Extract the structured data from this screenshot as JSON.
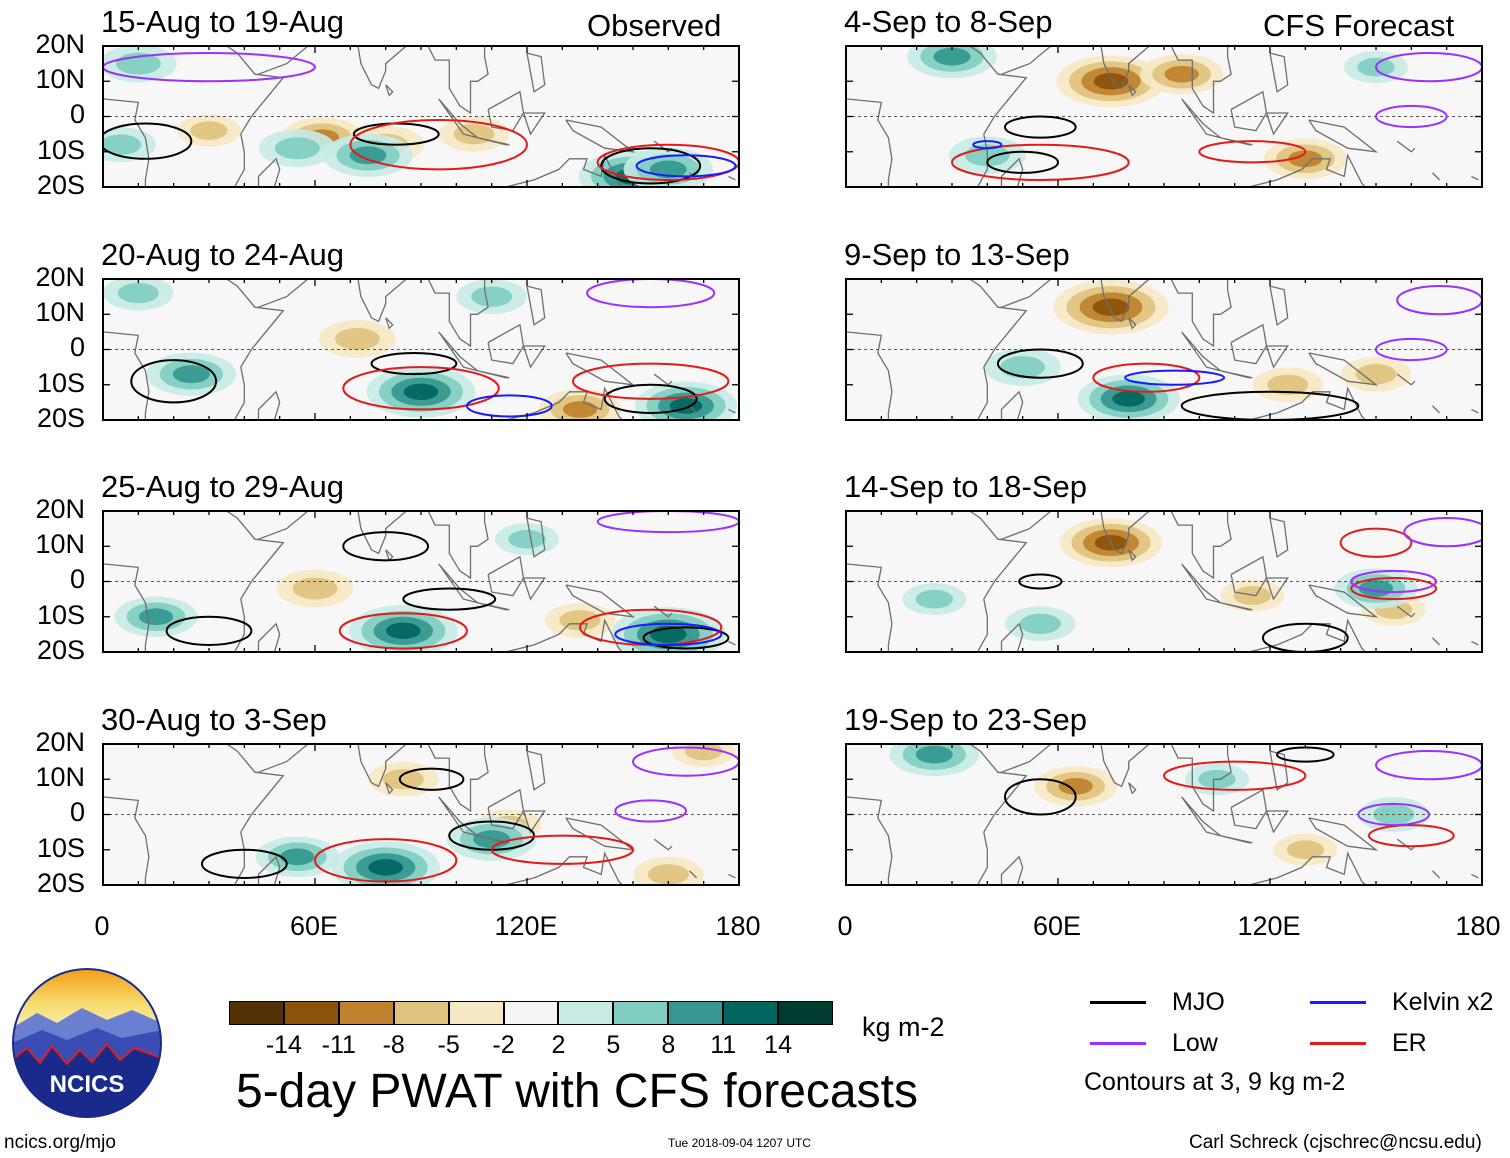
{
  "figure": {
    "title": "5-day PWAT with CFS forecasts",
    "observed_label": "Observed",
    "forecast_label": "CFS Forecast",
    "site": "ncics.org/mjo",
    "timestamp": "Tue 2018-09-04 1207 UTC",
    "author": "Carl Schreck (cjschrec@ncsu.edu)",
    "logo_text": "NCICS"
  },
  "colors": {
    "mjo": "#000000",
    "low": "#9b30ff",
    "kelvin": "#1a1aff",
    "er": "#e31a1c",
    "land": "#6e6e6e"
  },
  "colorbar": {
    "units": "kg m-2",
    "colors": [
      "#543005",
      "#8c510a",
      "#bf812d",
      "#dfc27d",
      "#f6e8c3",
      "#f5f5f5",
      "#c7eae5",
      "#80cdc1",
      "#35978f",
      "#01665e",
      "#003c30"
    ],
    "labels": [
      "-14",
      "-11",
      "-8",
      "-5",
      "-2",
      "2",
      "5",
      "8",
      "11",
      "14"
    ]
  },
  "legend": {
    "mjo": "MJO",
    "kelvin": "Kelvin x2",
    "low": "Low",
    "er": "ER",
    "note": "Contours at 3, 9 kg m-2"
  },
  "chart_data": {
    "type": "heatmap",
    "variable": "5-day precipitable water anomaly",
    "units": "kg m-2",
    "x_ticks": [
      "0",
      "60E",
      "120E",
      "180"
    ],
    "y_ticks": [
      "20N",
      "10N",
      "0",
      "10S",
      "20S"
    ],
    "xlim": [
      0,
      180
    ],
    "ylim": [
      -20,
      20
    ],
    "panels": [
      {
        "title": "15-Aug to 19-Aug",
        "source": "Observed",
        "anom": [
          [
            72,
            -8,
            -6
          ],
          [
            62,
            -6,
            -8
          ],
          [
            80,
            -8,
            -7
          ],
          [
            105,
            -5,
            -6
          ],
          [
            30,
            -4,
            -5
          ],
          [
            150,
            -17,
            12
          ],
          [
            160,
            -15,
            9
          ],
          [
            75,
            -11,
            9
          ],
          [
            10,
            15,
            7
          ],
          [
            5,
            -8,
            6
          ],
          [
            55,
            -9,
            7
          ]
        ],
        "contours": [
          {
            "type": "mjo",
            "lon": 12,
            "lat": -7,
            "rlon": 13,
            "rlat": 5
          },
          {
            "type": "mjo",
            "lon": 83,
            "lat": -5,
            "rlon": 12,
            "rlat": 3
          },
          {
            "type": "mjo",
            "lon": 155,
            "lat": -14,
            "rlon": 14,
            "rlat": 5
          },
          {
            "type": "er",
            "lon": 95,
            "lat": -8,
            "rlon": 25,
            "rlat": 7
          },
          {
            "type": "er",
            "lon": 160,
            "lat": -13,
            "rlon": 20,
            "rlat": 5
          },
          {
            "type": "kelvin",
            "lon": 165,
            "lat": -14,
            "rlon": 14,
            "rlat": 3
          },
          {
            "type": "low",
            "lon": 30,
            "lat": 14,
            "rlon": 30,
            "rlat": 4
          }
        ]
      },
      {
        "title": "20-Aug to 24-Aug",
        "source": "Observed",
        "anom": [
          [
            72,
            3,
            -7
          ],
          [
            135,
            -17,
            -8
          ],
          [
            90,
            -12,
            12
          ],
          [
            165,
            -16,
            11
          ],
          [
            25,
            -7,
            9
          ],
          [
            110,
            15,
            6
          ],
          [
            10,
            16,
            6
          ]
        ],
        "contours": [
          {
            "type": "mjo",
            "lon": 20,
            "lat": -9,
            "rlon": 12,
            "rlat": 6
          },
          {
            "type": "mjo",
            "lon": 88,
            "lat": -4,
            "rlon": 12,
            "rlat": 3
          },
          {
            "type": "mjo",
            "lon": 155,
            "lat": -14,
            "rlon": 13,
            "rlat": 4
          },
          {
            "type": "er",
            "lon": 90,
            "lat": -11,
            "rlon": 22,
            "rlat": 6
          },
          {
            "type": "er",
            "lon": 155,
            "lat": -9,
            "rlon": 22,
            "rlat": 5
          },
          {
            "type": "kelvin",
            "lon": 115,
            "lat": -16,
            "rlon": 12,
            "rlat": 3
          },
          {
            "type": "low",
            "lon": 155,
            "lat": 16,
            "rlon": 18,
            "rlat": 4
          }
        ]
      },
      {
        "title": "25-Aug to 29-Aug",
        "source": "Observed",
        "anom": [
          [
            60,
            -2,
            -7
          ],
          [
            135,
            -11,
            -6
          ],
          [
            85,
            -14,
            12
          ],
          [
            160,
            -15,
            13
          ],
          [
            15,
            -10,
            8
          ],
          [
            120,
            12,
            5
          ]
        ],
        "contours": [
          {
            "type": "mjo",
            "lon": 30,
            "lat": -14,
            "rlon": 12,
            "rlat": 4
          },
          {
            "type": "mjo",
            "lon": 98,
            "lat": -5,
            "rlon": 13,
            "rlat": 3
          },
          {
            "type": "mjo",
            "lon": 80,
            "lat": 10,
            "rlon": 12,
            "rlat": 4
          },
          {
            "type": "mjo",
            "lon": 165,
            "lat": -16,
            "rlon": 12,
            "rlat": 3
          },
          {
            "type": "er",
            "lon": 85,
            "lat": -14,
            "rlon": 18,
            "rlat": 5
          },
          {
            "type": "er",
            "lon": 155,
            "lat": -13,
            "rlon": 20,
            "rlat": 5
          },
          {
            "type": "kelvin",
            "lon": 160,
            "lat": -15,
            "rlon": 15,
            "rlat": 3
          },
          {
            "type": "low",
            "lon": 160,
            "lat": 17,
            "rlon": 20,
            "rlat": 3
          }
        ]
      },
      {
        "title": "30-Aug to 3-Sep",
        "source": "Observed",
        "anom": [
          [
            85,
            10,
            -6
          ],
          [
            115,
            -3,
            -5
          ],
          [
            160,
            -17,
            -6
          ],
          [
            80,
            -15,
            12
          ],
          [
            55,
            -12,
            8
          ],
          [
            110,
            -7,
            9
          ],
          [
            170,
            18,
            -5
          ]
        ],
        "contours": [
          {
            "type": "mjo",
            "lon": 40,
            "lat": -14,
            "rlon": 12,
            "rlat": 4
          },
          {
            "type": "mjo",
            "lon": 110,
            "lat": -6,
            "rlon": 12,
            "rlat": 4
          },
          {
            "type": "mjo",
            "lon": 93,
            "lat": 10,
            "rlon": 9,
            "rlat": 3
          },
          {
            "type": "er",
            "lon": 80,
            "lat": -13,
            "rlon": 20,
            "rlat": 6
          },
          {
            "type": "er",
            "lon": 130,
            "lat": -10,
            "rlon": 20,
            "rlat": 4
          },
          {
            "type": "low",
            "lon": 155,
            "lat": 1,
            "rlon": 10,
            "rlat": 3
          },
          {
            "type": "low",
            "lon": 165,
            "lat": 15,
            "rlon": 15,
            "rlat": 4
          }
        ]
      },
      {
        "title": "4-Sep to 8-Sep",
        "source": "CFS Forecast",
        "anom": [
          [
            75,
            10,
            -12
          ],
          [
            130,
            -12,
            -8
          ],
          [
            40,
            -11,
            7
          ],
          [
            30,
            17,
            9
          ],
          [
            150,
            14,
            5
          ],
          [
            95,
            12,
            -8
          ]
        ],
        "contours": [
          {
            "type": "mjo",
            "lon": 55,
            "lat": -3,
            "rlon": 10,
            "rlat": 3
          },
          {
            "type": "mjo",
            "lon": 50,
            "lat": -13,
            "rlon": 10,
            "rlat": 3
          },
          {
            "type": "er",
            "lon": 55,
            "lat": -13,
            "rlon": 25,
            "rlat": 5
          },
          {
            "type": "er",
            "lon": 115,
            "lat": -10,
            "rlon": 15,
            "rlat": 3
          },
          {
            "type": "kelvin",
            "lon": 40,
            "lat": -8,
            "rlon": 4,
            "rlat": 1
          },
          {
            "type": "low",
            "lon": 160,
            "lat": 0,
            "rlon": 10,
            "rlat": 3
          },
          {
            "type": "low",
            "lon": 165,
            "lat": 14,
            "rlon": 15,
            "rlat": 4
          }
        ]
      },
      {
        "title": "9-Sep to 13-Sep",
        "source": "CFS Forecast",
        "anom": [
          [
            75,
            12,
            -13
          ],
          [
            125,
            -10,
            -6
          ],
          [
            150,
            -7,
            -6
          ],
          [
            80,
            -14,
            11
          ],
          [
            50,
            -5,
            7
          ]
        ],
        "contours": [
          {
            "type": "mjo",
            "lon": 55,
            "lat": -4,
            "rlon": 12,
            "rlat": 4
          },
          {
            "type": "mjo",
            "lon": 120,
            "lat": -16,
            "rlon": 25,
            "rlat": 4
          },
          {
            "type": "er",
            "lon": 85,
            "lat": -8,
            "rlon": 15,
            "rlat": 4
          },
          {
            "type": "kelvin",
            "lon": 93,
            "lat": -8,
            "rlon": 14,
            "rlat": 2
          },
          {
            "type": "low",
            "lon": 160,
            "lat": 0,
            "rlon": 10,
            "rlat": 3
          },
          {
            "type": "low",
            "lon": 168,
            "lat": 14,
            "rlon": 12,
            "rlat": 4
          }
        ]
      },
      {
        "title": "14-Sep to 18-Sep",
        "source": "CFS Forecast",
        "anom": [
          [
            75,
            11,
            -11
          ],
          [
            115,
            -4,
            -5
          ],
          [
            155,
            -8,
            -5
          ],
          [
            150,
            -2,
            8
          ],
          [
            55,
            -12,
            6
          ],
          [
            25,
            -5,
            5
          ]
        ],
        "contours": [
          {
            "type": "mjo",
            "lon": 130,
            "lat": -16,
            "rlon": 12,
            "rlat": 4
          },
          {
            "type": "mjo",
            "lon": 55,
            "lat": 0,
            "rlon": 6,
            "rlat": 2
          },
          {
            "type": "er",
            "lon": 155,
            "lat": -2,
            "rlon": 12,
            "rlat": 3
          },
          {
            "type": "er",
            "lon": 150,
            "lat": 11,
            "rlon": 10,
            "rlat": 4
          },
          {
            "type": "low",
            "lon": 155,
            "lat": 0,
            "rlon": 12,
            "rlat": 3
          },
          {
            "type": "low",
            "lon": 170,
            "lat": 14,
            "rlon": 12,
            "rlat": 4
          }
        ]
      },
      {
        "title": "19-Sep to 23-Sep",
        "source": "CFS Forecast",
        "anom": [
          [
            65,
            8,
            -8
          ],
          [
            130,
            -10,
            -5
          ],
          [
            25,
            17,
            9
          ],
          [
            155,
            0,
            6
          ],
          [
            105,
            10,
            5
          ]
        ],
        "contours": [
          {
            "type": "mjo",
            "lon": 55,
            "lat": 5,
            "rlon": 10,
            "rlat": 5
          },
          {
            "type": "mjo",
            "lon": 130,
            "lat": 17,
            "rlon": 8,
            "rlat": 2
          },
          {
            "type": "er",
            "lon": 110,
            "lat": 11,
            "rlon": 20,
            "rlat": 4
          },
          {
            "type": "er",
            "lon": 160,
            "lat": -6,
            "rlon": 12,
            "rlat": 3
          },
          {
            "type": "low",
            "lon": 155,
            "lat": 0,
            "rlon": 10,
            "rlat": 3
          },
          {
            "type": "low",
            "lon": 165,
            "lat": 14,
            "rlon": 15,
            "rlat": 4
          }
        ]
      }
    ]
  }
}
